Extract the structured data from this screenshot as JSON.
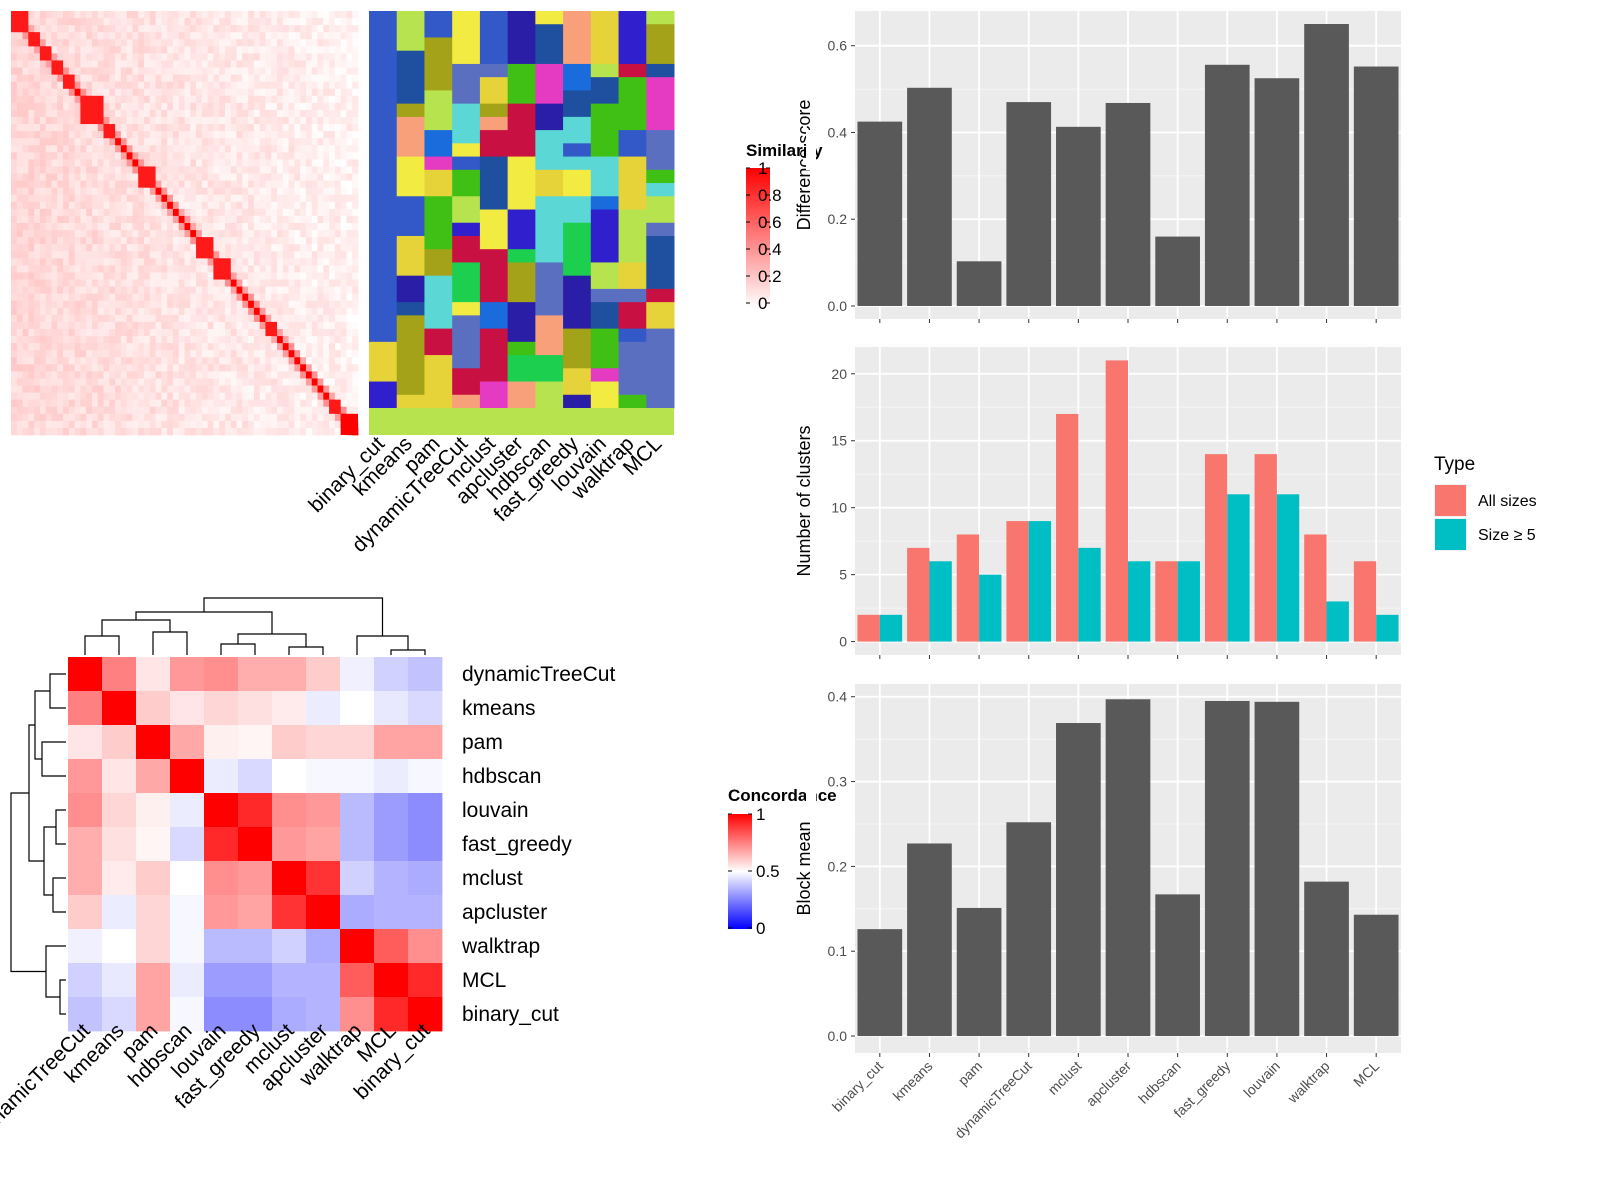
{
  "methods": [
    "binary_cut",
    "kmeans",
    "pam",
    "dynamicTreeCut",
    "mclust",
    "apcluster",
    "hdbscan",
    "fast_greedy",
    "louvain",
    "walktrap",
    "MCL"
  ],
  "similarity_heatmap": {
    "legend_title": "Similarity",
    "legend_ticks": [
      "1",
      "0.8",
      "0.6",
      "0.4",
      "0.2",
      "0"
    ],
    "color_low": "#FFFFFF",
    "color_high": "#FF0000"
  },
  "cluster_panel": {
    "columns": [
      "binary_cut",
      "kmeans",
      "pam",
      "dynamicTreeCut",
      "mclust",
      "apcluster",
      "hdbscan",
      "fast_greedy",
      "louvain",
      "walktrap",
      "MCL"
    ],
    "colors": [
      "#3358c8",
      "#e43bc2",
      "#a3a219",
      "#1ccf4f",
      "#5b6fc0",
      "#2f1fcc",
      "#40c014",
      "#f2ec42",
      "#c91043",
      "#5bd7d5",
      "#1a6bdb",
      "#2b1ea6",
      "#e6d33a",
      "#f7a07a",
      "#1f50a0",
      "#b6e34e"
    ],
    "bottom_strip_color": "#b6e34e"
  },
  "concordance_heatmap": {
    "legend_title": "Concordance",
    "legend_ticks": [
      "1",
      "0.5",
      "0"
    ],
    "row_order": [
      "dynamicTreeCut",
      "kmeans",
      "pam",
      "hdbscan",
      "louvain",
      "fast_greedy",
      "mclust",
      "apcluster",
      "walktrap",
      "MCL",
      "binary_cut"
    ],
    "col_order": [
      "dynamicTreeCut",
      "kmeans",
      "pam",
      "hdbscan",
      "louvain",
      "fast_greedy",
      "mclust",
      "apcluster",
      "walktrap",
      "MCL",
      "binary_cut"
    ],
    "matrix": [
      [
        1.0,
        0.75,
        0.55,
        0.7,
        0.72,
        0.66,
        0.66,
        0.6,
        0.46,
        0.38,
        0.34
      ],
      [
        0.75,
        1.0,
        0.6,
        0.55,
        0.58,
        0.56,
        0.54,
        0.45,
        0.5,
        0.44,
        0.4
      ],
      [
        0.55,
        0.6,
        1.0,
        0.67,
        0.53,
        0.52,
        0.6,
        0.58,
        0.58,
        0.68,
        0.68
      ],
      [
        0.7,
        0.55,
        0.67,
        1.0,
        0.45,
        0.4,
        0.5,
        0.48,
        0.48,
        0.45,
        0.48
      ],
      [
        0.72,
        0.58,
        0.53,
        0.45,
        1.0,
        0.92,
        0.72,
        0.7,
        0.32,
        0.24,
        0.2
      ],
      [
        0.66,
        0.56,
        0.52,
        0.4,
        0.92,
        1.0,
        0.7,
        0.68,
        0.32,
        0.24,
        0.2
      ],
      [
        0.66,
        0.54,
        0.6,
        0.5,
        0.72,
        0.7,
        1.0,
        0.9,
        0.38,
        0.3,
        0.28
      ],
      [
        0.6,
        0.45,
        0.58,
        0.48,
        0.7,
        0.68,
        0.9,
        1.0,
        0.28,
        0.3,
        0.3
      ],
      [
        0.46,
        0.5,
        0.58,
        0.48,
        0.32,
        0.32,
        0.38,
        0.28,
        1.0,
        0.82,
        0.72
      ],
      [
        0.38,
        0.44,
        0.68,
        0.45,
        0.24,
        0.24,
        0.3,
        0.3,
        0.82,
        1.0,
        0.92
      ],
      [
        0.34,
        0.4,
        0.68,
        0.48,
        0.2,
        0.2,
        0.28,
        0.3,
        0.72,
        0.92,
        1.0
      ]
    ],
    "color_low": "#0000FF",
    "color_mid": "#FFFFFF",
    "color_high": "#FF0000"
  },
  "chart_data": [
    {
      "type": "bar",
      "categories": [
        "binary_cut",
        "kmeans",
        "pam",
        "dynamicTreeCut",
        "mclust",
        "apcluster",
        "hdbscan",
        "fast_greedy",
        "louvain",
        "walktrap",
        "MCL"
      ],
      "values": [
        0.425,
        0.503,
        0.103,
        0.47,
        0.413,
        0.468,
        0.16,
        0.556,
        0.525,
        0.65,
        0.552
      ],
      "xlabel": "",
      "ylabel": "Difference score",
      "ylim": [
        -0.03,
        0.68
      ],
      "yticks": [
        0.0,
        0.2,
        0.4,
        0.6
      ],
      "ytick_labels": [
        "0.0",
        "0.2",
        "0.4",
        "0.6"
      ],
      "bar_color": "#595959",
      "show_x_labels": false
    },
    {
      "type": "bar",
      "categories": [
        "binary_cut",
        "kmeans",
        "pam",
        "dynamicTreeCut",
        "mclust",
        "apcluster",
        "hdbscan",
        "fast_greedy",
        "louvain",
        "walktrap",
        "MCL"
      ],
      "series": [
        {
          "name": "All sizes",
          "values": [
            2,
            7,
            8,
            9,
            17,
            21,
            6,
            14,
            14,
            8,
            6
          ],
          "color": "#F8766D"
        },
        {
          "name": "Size ≥ 5",
          "values": [
            2,
            6,
            5,
            9,
            7,
            6,
            6,
            11,
            11,
            3,
            2
          ],
          "color": "#00BFC4"
        }
      ],
      "ylabel": "Number of clusters",
      "ylim": [
        -1,
        22
      ],
      "yticks": [
        0,
        5,
        10,
        15,
        20
      ],
      "ytick_labels": [
        "0",
        "5",
        "10",
        "15",
        "20"
      ],
      "legend_title": "Type",
      "legend_position": "right",
      "show_x_labels": false
    },
    {
      "type": "bar",
      "categories": [
        "binary_cut",
        "kmeans",
        "pam",
        "dynamicTreeCut",
        "mclust",
        "apcluster",
        "hdbscan",
        "fast_greedy",
        "louvain",
        "walktrap",
        "MCL"
      ],
      "values": [
        0.126,
        0.227,
        0.151,
        0.252,
        0.369,
        0.397,
        0.167,
        0.395,
        0.394,
        0.182,
        0.143
      ],
      "ylabel": "Block mean",
      "ylim": [
        -0.02,
        0.415
      ],
      "yticks": [
        0.0,
        0.1,
        0.2,
        0.3,
        0.4
      ],
      "ytick_labels": [
        "0.0",
        "0.1",
        "0.2",
        "0.3",
        "0.4"
      ],
      "bar_color": "#595959",
      "show_x_labels": true
    }
  ]
}
